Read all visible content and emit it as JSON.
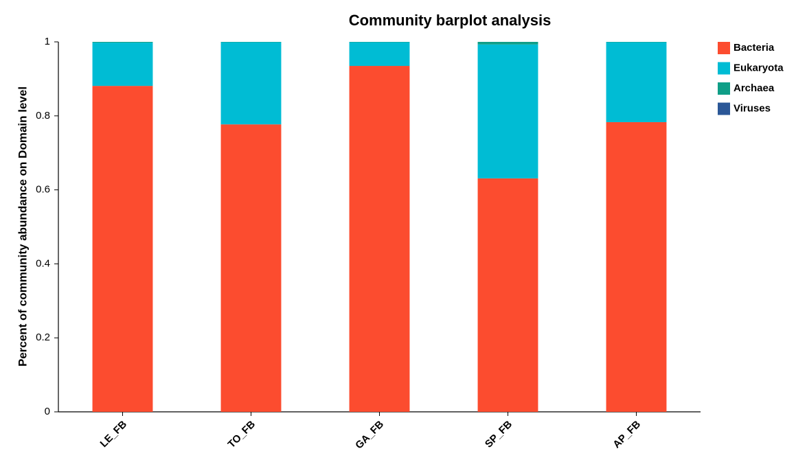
{
  "chart_data": {
    "type": "stacked_bar",
    "title": "Community barplot analysis",
    "y_label": "Percent of community abundance on Domain level",
    "categories": [
      "LE_FB",
      "TO_FB",
      "GA_FB",
      "SP_FB",
      "AP_FB"
    ],
    "series": [
      {
        "name": "Bacteria",
        "color": "#fc4c2f",
        "values": [
          0.881,
          0.777,
          0.935,
          0.631,
          0.783
        ]
      },
      {
        "name": "Eukaryota",
        "color": "#00bcd4",
        "values": [
          0.117,
          0.222,
          0.064,
          0.362,
          0.216
        ]
      },
      {
        "name": "Archaea",
        "color": "#0f9e87",
        "values": [
          0.002,
          0.001,
          0.001,
          0.007,
          0.001
        ]
      },
      {
        "name": "Viruses",
        "color": "#2b5797",
        "values": [
          0,
          0,
          0,
          0,
          0
        ]
      }
    ],
    "ylim": [
      0,
      1
    ],
    "yticks": [
      0,
      0.2,
      0.4,
      0.6,
      0.8,
      1
    ],
    "legend": "right"
  }
}
